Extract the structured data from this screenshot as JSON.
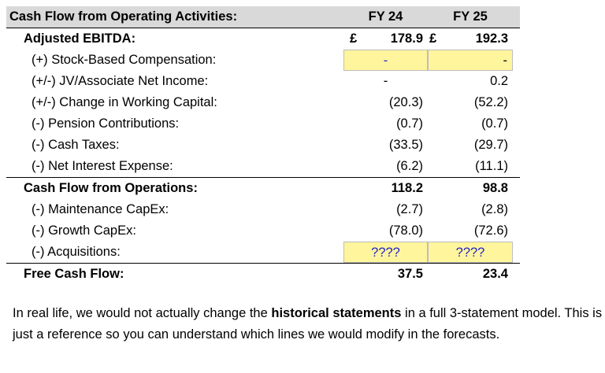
{
  "table": {
    "header": {
      "label": "Cash Flow from Operating Activities:",
      "col1": "FY 24",
      "col2": "FY 25"
    },
    "ebitda": {
      "label": "Adjusted EBITDA:",
      "cur1": "£",
      "v1": "178.9",
      "cur2": "£",
      "v2": "192.3"
    },
    "sbc": {
      "label": "(+) Stock-Based Compensation:",
      "v1": "-",
      "v2": "-"
    },
    "jv": {
      "label": "(+/-) JV/Associate Net Income:",
      "v1": "-",
      "v2": "0.2"
    },
    "wc": {
      "label": "(+/-) Change in Working Capital:",
      "v1": "(20.3)",
      "v2": "(52.2)"
    },
    "pension": {
      "label": "(-) Pension Contributions:",
      "v1": "(0.7)",
      "v2": "(0.7)"
    },
    "taxes": {
      "label": "(-) Cash Taxes:",
      "v1": "(33.5)",
      "v2": "(29.7)"
    },
    "interest": {
      "label": "(-) Net Interest Expense:",
      "v1": "(6.2)",
      "v2": "(11.1)"
    },
    "cfo": {
      "label": "Cash Flow from Operations:",
      "v1": "118.2",
      "v2": "98.8"
    },
    "maint": {
      "label": "(-) Maintenance CapEx:",
      "v1": "(2.7)",
      "v2": "(2.8)"
    },
    "growth": {
      "label": "(-) Growth CapEx:",
      "v1": "(78.0)",
      "v2": "(72.6)"
    },
    "acq": {
      "label": "(-) Acquisitions:",
      "v1": "????",
      "v2": "????"
    },
    "fcf": {
      "label": "Free Cash Flow:",
      "v1": "37.5",
      "v2": "23.4"
    }
  },
  "note": {
    "part1": "In real life, we would not actually change the ",
    "bold": "historical statements",
    "part2": " in a full 3-statement model. This is just a reference so you can understand which lines we would modify in the forecasts."
  },
  "colors": {
    "header_bg": "#d9d9d9",
    "input_bg": "#fff59d",
    "input_text": "#2222cc"
  }
}
